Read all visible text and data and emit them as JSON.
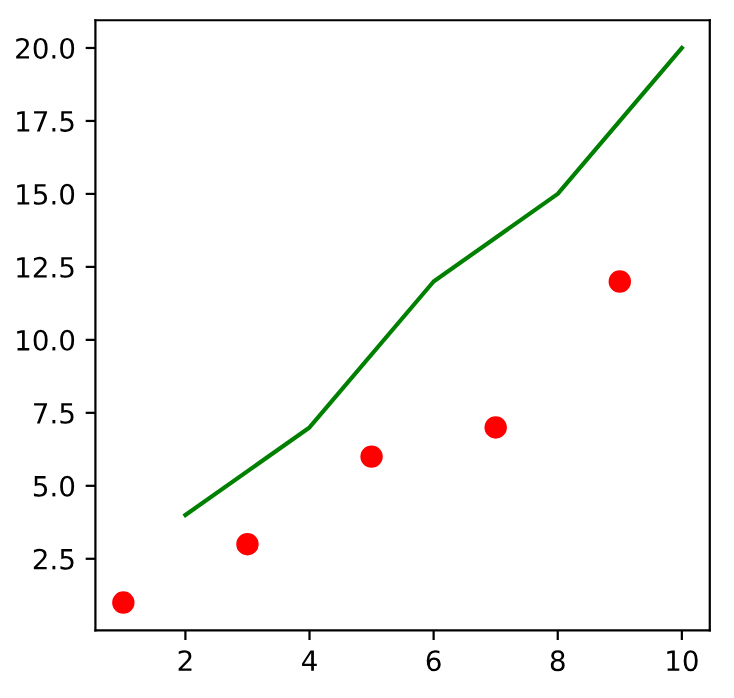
{
  "chart_data": {
    "type": "line",
    "series": [
      {
        "color": "#008000",
        "x": [
          2,
          4,
          6,
          8,
          10
        ],
        "values": [
          4,
          7,
          12,
          15,
          20
        ],
        "marker": "none"
      },
      {
        "type": "scatter",
        "color": "#ff0000",
        "x": [
          1,
          3,
          5,
          7,
          9
        ],
        "values": [
          1,
          3,
          6,
          7,
          12
        ],
        "marker": "circle"
      }
    ],
    "xlim": [
      0.55,
      10.45
    ],
    "ylim": [
      0.05,
      20.95
    ],
    "xticks": [
      2,
      4,
      6,
      8,
      10
    ],
    "yticks": [
      {
        "value": 2.5,
        "label": "2.5"
      },
      {
        "value": 5,
        "label": "5.0"
      },
      {
        "value": 7.5,
        "label": "7.5"
      },
      {
        "value": 10,
        "label": "10.0"
      },
      {
        "value": 12.5,
        "label": "12.5"
      },
      {
        "value": 15,
        "label": "15.0"
      },
      {
        "value": 17.5,
        "label": "17.5"
      },
      {
        "value": 20,
        "label": "20.0"
      }
    ],
    "grid": false
  }
}
